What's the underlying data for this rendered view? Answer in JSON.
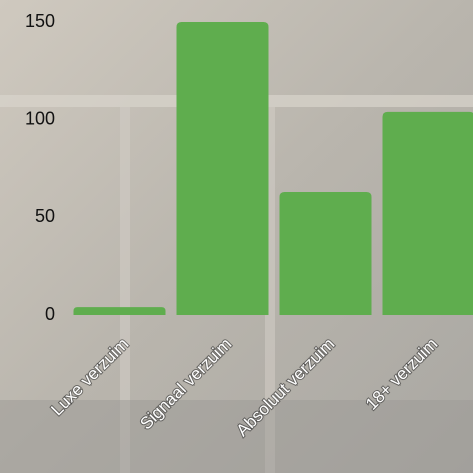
{
  "chart_data": {
    "type": "bar",
    "categories": [
      "Luxe verzuim",
      "Signaal verzuim",
      "Absoluut verzuim",
      "18+ verzuim"
    ],
    "values": [
      4,
      150,
      63,
      104
    ],
    "color": "#5fad4e",
    "ylim": [
      0,
      150
    ],
    "yticks": [
      0,
      50,
      100,
      150
    ],
    "grid": false
  }
}
